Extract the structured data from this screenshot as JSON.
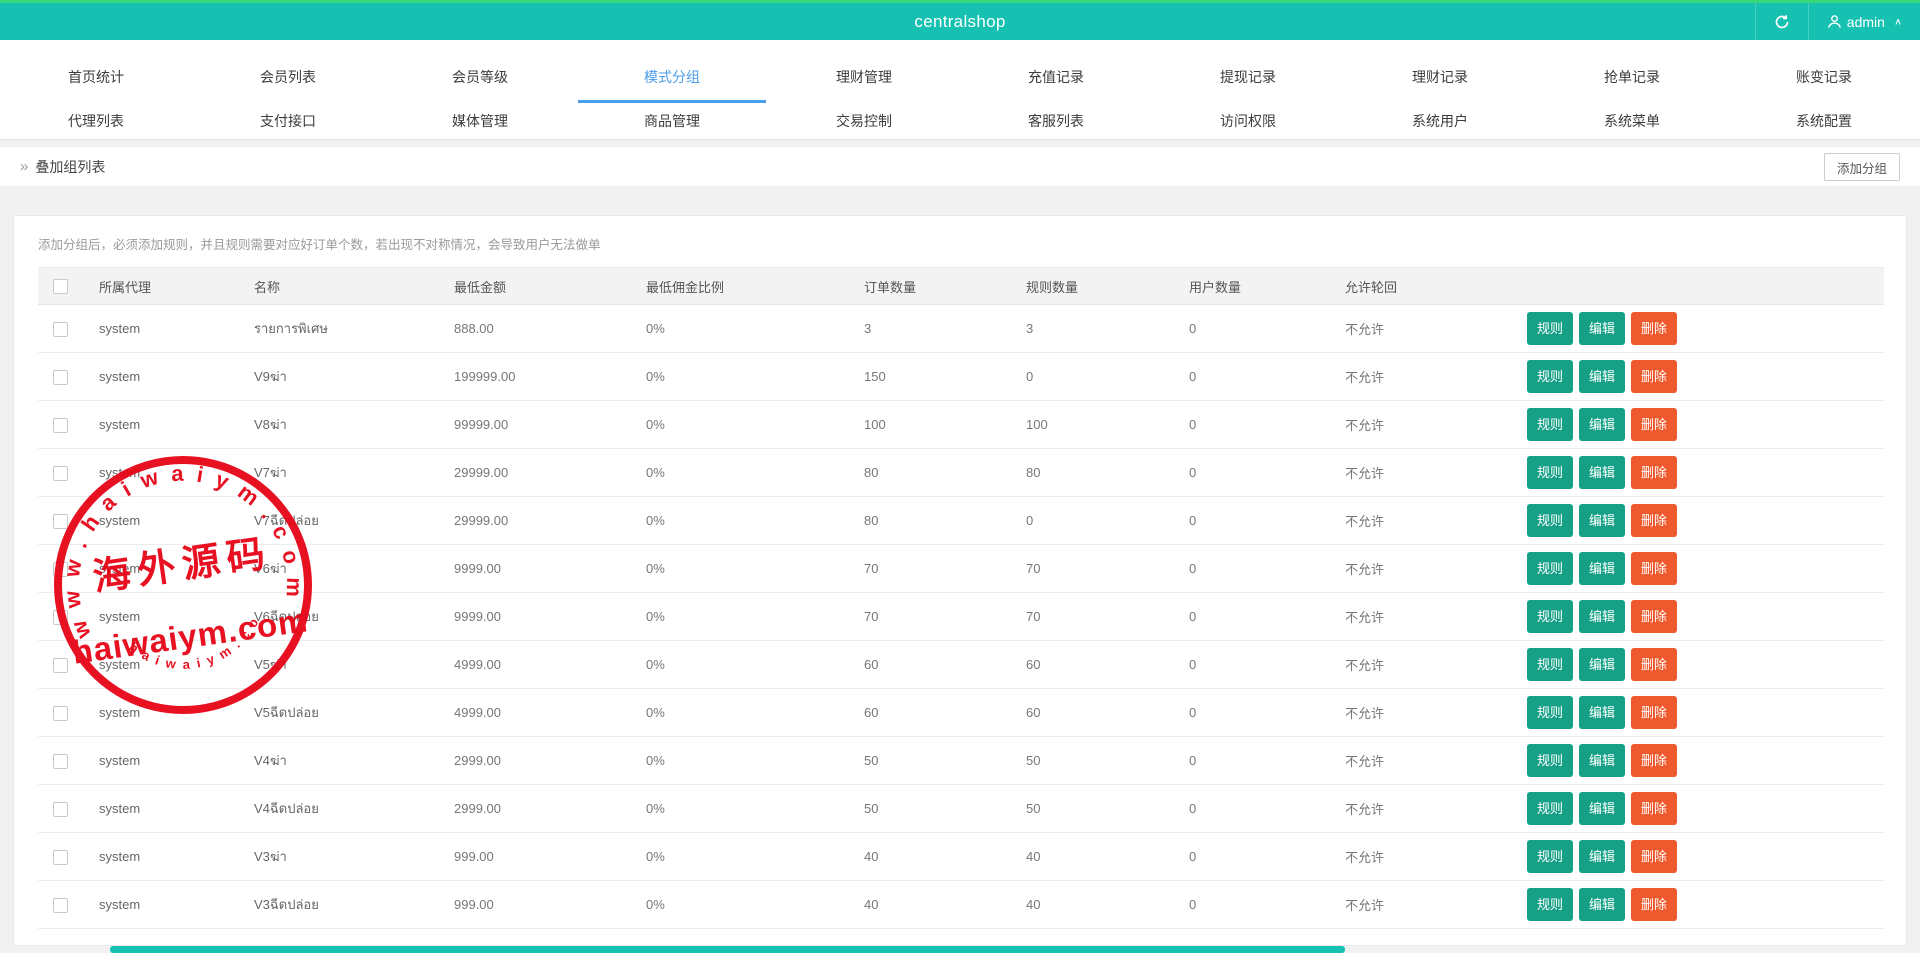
{
  "titlebar": {
    "title": "centralshop",
    "user": "admin",
    "caret": "∧"
  },
  "nav": {
    "active": "模式分组",
    "row1": [
      "首页统计",
      "会员列表",
      "会员等级",
      "模式分组",
      "理财管理",
      "充值记录",
      "提现记录",
      "理财记录",
      "抢单记录",
      "账变记录"
    ],
    "row2": [
      "代理列表",
      "支付接口",
      "媒体管理",
      "商品管理",
      "交易控制",
      "客服列表",
      "访问权限",
      "系统用户",
      "系统菜单",
      "系统配置"
    ]
  },
  "toolbar": {
    "breadcrumb_chevron": "»",
    "breadcrumb": "叠加组列表",
    "add_button": "添加分组"
  },
  "hint": "添加分组后，必须添加规则，并且规则需要对应好订单个数，若出现不对称情况，会导致用户无法做单",
  "table": {
    "columns": [
      "所属代理",
      "名称",
      "最低金额",
      "最低佣金比例",
      "订单数量",
      "规则数量",
      "用户数量",
      "允许轮回"
    ],
    "action_labels": [
      "规则",
      "编辑",
      "删除"
    ],
    "rows": [
      {
        "agent": "system",
        "name": "รายการพิเศษ",
        "min_amount": "888.00",
        "min_rate": "0%",
        "orders": "3",
        "rules": "3",
        "users": "0",
        "allow": "不允许"
      },
      {
        "agent": "system",
        "name": "V9ฆ่า",
        "min_amount": "199999.00",
        "min_rate": "0%",
        "orders": "150",
        "rules": "0",
        "users": "0",
        "allow": "不允许"
      },
      {
        "agent": "system",
        "name": "V8ฆ่า",
        "min_amount": "99999.00",
        "min_rate": "0%",
        "orders": "100",
        "rules": "100",
        "users": "0",
        "allow": "不允许"
      },
      {
        "agent": "system",
        "name": "V7ฆ่า",
        "min_amount": "29999.00",
        "min_rate": "0%",
        "orders": "80",
        "rules": "80",
        "users": "0",
        "allow": "不允许"
      },
      {
        "agent": "system",
        "name": "V7ฉีดปล่อย",
        "min_amount": "29999.00",
        "min_rate": "0%",
        "orders": "80",
        "rules": "0",
        "users": "0",
        "allow": "不允许"
      },
      {
        "agent": "system",
        "name": "V6ฆ่า",
        "min_amount": "9999.00",
        "min_rate": "0%",
        "orders": "70",
        "rules": "70",
        "users": "0",
        "allow": "不允许"
      },
      {
        "agent": "system",
        "name": "V6ฉีดปล่อย",
        "min_amount": "9999.00",
        "min_rate": "0%",
        "orders": "70",
        "rules": "70",
        "users": "0",
        "allow": "不允许"
      },
      {
        "agent": "system",
        "name": "V5ฆ่า",
        "min_amount": "4999.00",
        "min_rate": "0%",
        "orders": "60",
        "rules": "60",
        "users": "0",
        "allow": "不允许"
      },
      {
        "agent": "system",
        "name": "V5ฉีดปล่อย",
        "min_amount": "4999.00",
        "min_rate": "0%",
        "orders": "60",
        "rules": "60",
        "users": "0",
        "allow": "不允许"
      },
      {
        "agent": "system",
        "name": "V4ฆ่า",
        "min_amount": "2999.00",
        "min_rate": "0%",
        "orders": "50",
        "rules": "50",
        "users": "0",
        "allow": "不允许"
      },
      {
        "agent": "system",
        "name": "V4ฉีดปล่อย",
        "min_amount": "2999.00",
        "min_rate": "0%",
        "orders": "50",
        "rules": "50",
        "users": "0",
        "allow": "不允许"
      },
      {
        "agent": "system",
        "name": "V3ฆ่า",
        "min_amount": "999.00",
        "min_rate": "0%",
        "orders": "40",
        "rules": "40",
        "users": "0",
        "allow": "不允许"
      },
      {
        "agent": "system",
        "name": "V3ฉีดปล่อย",
        "min_amount": "999.00",
        "min_rate": "0%",
        "orders": "40",
        "rules": "40",
        "users": "0",
        "allow": "不允许"
      }
    ]
  },
  "watermark": {
    "arc_text": "w w w . h a i w a i y m . c o m",
    "center_text": "海外源码",
    "domain_text": "haiwaiym.com",
    "small_arc_text": "h a i w a i y m . c o m"
  },
  "colors": {
    "topbar_teal": "#16c1b2",
    "top_strip_green": "#35d876",
    "active_tab_blue": "#4a9dec",
    "button_teal": "#16a085",
    "button_orange": "#ee5a2d",
    "watermark_red": "#e60012"
  }
}
